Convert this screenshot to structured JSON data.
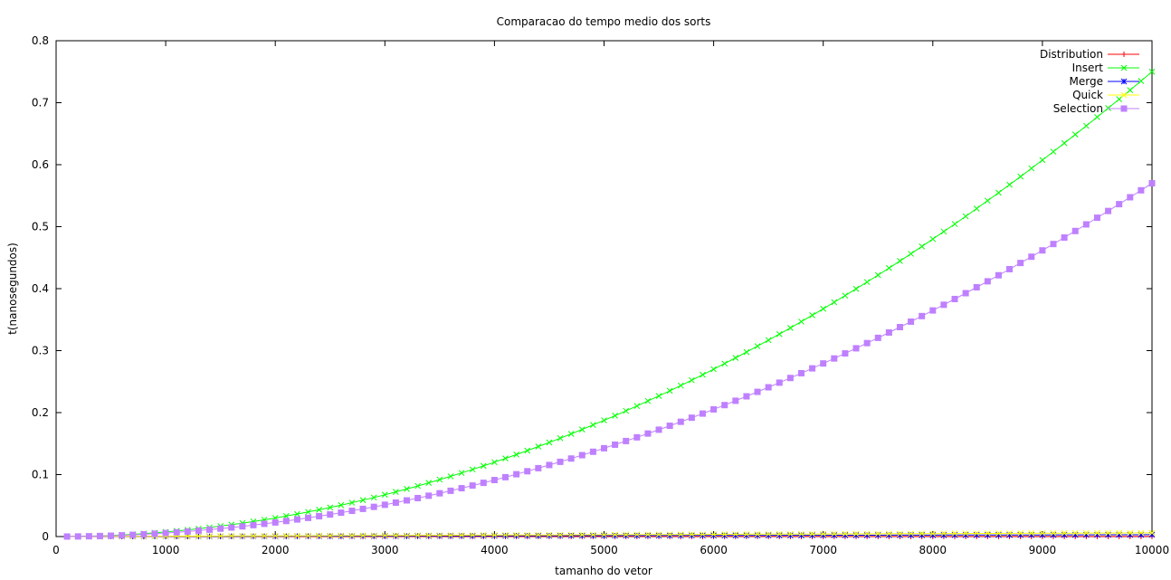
{
  "chart_data": {
    "type": "line",
    "title": "Comparacao do tempo medio dos sorts",
    "xlabel": "tamanho do vetor",
    "ylabel": "t(nanosegundos)",
    "xlim": [
      0,
      10000
    ],
    "ylim": [
      0,
      0.8
    ],
    "xticks": [
      "0",
      "1000",
      "2000",
      "3000",
      "4000",
      "5000",
      "6000",
      "7000",
      "8000",
      "9000",
      "10000"
    ],
    "yticks": [
      "0",
      "0.1",
      "0.2",
      "0.3",
      "0.4",
      "0.5",
      "0.6",
      "0.7",
      "0.8"
    ],
    "grid": false,
    "legend_position": "top-right",
    "series": [
      {
        "name": "Distribution",
        "color": "#ff0000",
        "marker": "plus",
        "model": "const",
        "coef": 0.0002,
        "x_start": 100,
        "x_end": 10000,
        "x_step": 100
      },
      {
        "name": "Insert",
        "color": "#00ff00",
        "marker": "cross",
        "model": "quadratic",
        "coef": 0.75,
        "x_start": 100,
        "x_end": 10000,
        "x_step": 100
      },
      {
        "name": "Merge",
        "color": "#0000ff",
        "marker": "asterisk",
        "model": "linear",
        "coef": 0.003,
        "x_start": 100,
        "x_end": 10000,
        "x_step": 100
      },
      {
        "name": "Quick",
        "color": "#ffff00",
        "marker": "cross",
        "model": "linear",
        "coef": 0.006,
        "x_start": 100,
        "x_end": 10000,
        "x_step": 100
      },
      {
        "name": "Selection",
        "color": "#bf80ff",
        "marker": "square",
        "model": "quadratic",
        "coef": 0.57,
        "x_start": 100,
        "x_end": 10000,
        "x_step": 100
      }
    ]
  }
}
